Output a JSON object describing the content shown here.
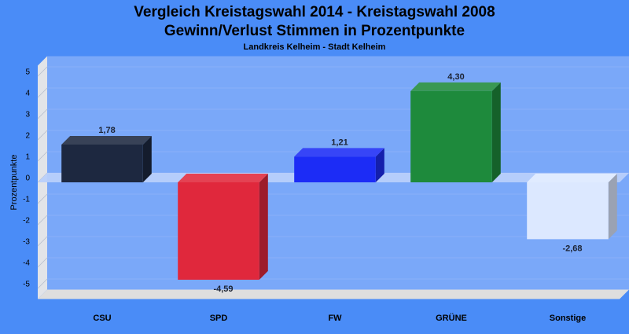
{
  "chart_data": {
    "type": "bar",
    "title_line1": "Vergleich Kreistagswahl 2014 - Kreistagswahl 2008",
    "title_line2": "Gewinn/Verlust Stimmen in Prozentpunkte",
    "subtitle": "Landkreis Kelheim - Stadt Kelheim",
    "ylabel": "Prozentpunkte",
    "xlabel": "",
    "categories": [
      "CSU",
      "SPD",
      "FW",
      "GRÜNE",
      "Sonstige"
    ],
    "values": [
      1.78,
      -4.59,
      1.21,
      4.3,
      -2.68
    ],
    "value_labels": [
      "1,78",
      "-4,59",
      "1,21",
      "4,30",
      "-2,68"
    ],
    "colors": [
      "#1d2840",
      "#e0283c",
      "#1c2cf6",
      "#1e8a3c",
      "#dce8ff"
    ],
    "yticks": [
      "5",
      "4",
      "3",
      "2",
      "1",
      "0",
      "-1",
      "-2",
      "-3",
      "-4",
      "-5"
    ],
    "ylim": [
      -5.5,
      5.5
    ],
    "grid": true,
    "legend": "none"
  }
}
